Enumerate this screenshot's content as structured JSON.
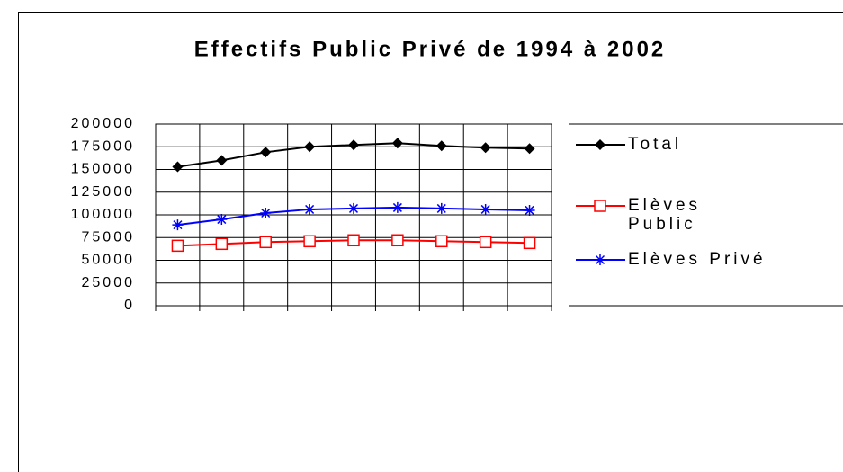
{
  "chart_data": {
    "type": "line",
    "title": "Effectifs Public Privé de 1994 à 2002",
    "categories": [
      null,
      null,
      null,
      null,
      null,
      null,
      null,
      null,
      null
    ],
    "series": [
      {
        "name": "Total",
        "color": "#000000",
        "marker": "diamond",
        "values": [
          153000,
          160000,
          169000,
          175000,
          177000,
          179000,
          176000,
          174000,
          173000
        ]
      },
      {
        "name": "Elèves Public",
        "color": "#ff0000",
        "marker": "square",
        "values": [
          66000,
          68000,
          70000,
          71000,
          72000,
          72000,
          71000,
          70000,
          69000
        ]
      },
      {
        "name": "Elèves Privé",
        "color": "#0000ff",
        "marker": "asterisk",
        "values": [
          89000,
          95000,
          102000,
          106000,
          107000,
          108000,
          107000,
          106000,
          105000
        ]
      }
    ],
    "ylim": [
      0,
      200000
    ],
    "yticks": [
      0,
      25000,
      50000,
      75000,
      100000,
      125000,
      150000,
      175000,
      200000
    ],
    "grid": true,
    "legend": "right"
  }
}
